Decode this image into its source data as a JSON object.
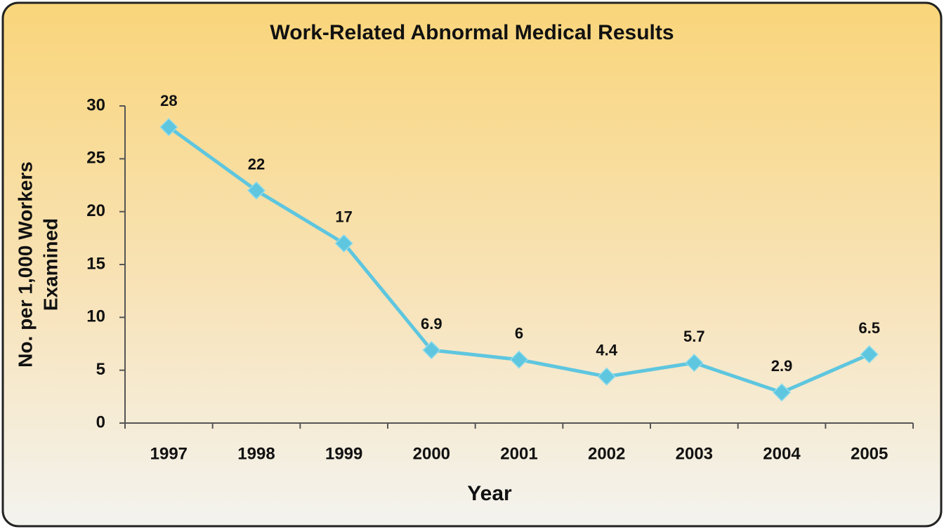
{
  "chart_data": {
    "type": "line",
    "title": "Work-Related Abnormal Medical Results",
    "x_label": "Year",
    "y_label": [
      "No. per 1,000 Workers",
      "Examined"
    ],
    "categories": [
      "1997",
      "1998",
      "1999",
      "2000",
      "2001",
      "2002",
      "2003",
      "2004",
      "2005"
    ],
    "values": [
      28,
      22,
      17,
      6.9,
      6,
      4.4,
      5.7,
      2.9,
      6.5
    ],
    "color": "#5ec6df",
    "ylim": [
      0,
      30
    ],
    "yticks": [
      0,
      5,
      10,
      15,
      20,
      25,
      30
    ],
    "grid": false,
    "data_labels": true
  }
}
